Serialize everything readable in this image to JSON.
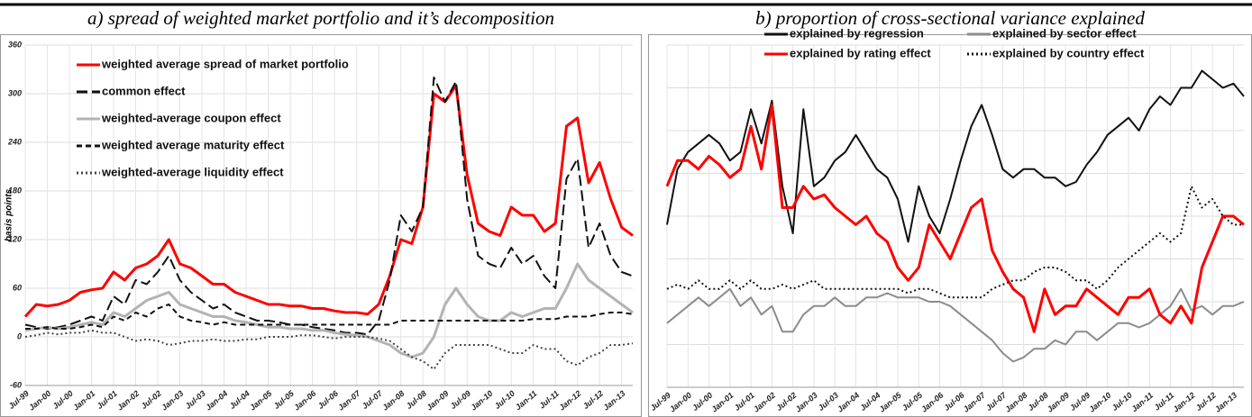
{
  "chart_data": [
    {
      "type": "line",
      "title": "a) spread of weighted market portfolio and it’s decomposition",
      "ylabel": "basis points",
      "x": [
        "Jul-99",
        null,
        "Jan-00",
        null,
        "Jul-00",
        null,
        "Jan-01",
        null,
        "Jul-01",
        null,
        "Jan-02",
        null,
        "Jul-02",
        null,
        "Jan-03",
        null,
        "Jul-03",
        null,
        "Jan-04",
        null,
        "Jul-04",
        null,
        "Jan-05",
        null,
        "Jul-05",
        null,
        "Jan-06",
        null,
        "Jul-06",
        null,
        "Jan-07",
        null,
        "Jul-07",
        null,
        "Jan-08",
        null,
        "Jul-08",
        null,
        "Jan-09",
        null,
        "Jul-09",
        null,
        "Jan-10",
        null,
        "Jul-10",
        null,
        "Jan-11",
        null,
        "Jul-11",
        null,
        "Jan-12",
        null,
        "Jul-12",
        null,
        "Jan-13",
        null
      ],
      "ylim": [
        -60,
        360
      ],
      "yticks": [
        -60,
        0,
        60,
        120,
        180,
        240,
        300,
        360
      ],
      "show_ytick_labels": true,
      "grid": true,
      "legend": "upper left",
      "series": [
        {
          "name": "weighted average spread of market portfolio",
          "color": "#ff0000",
          "linestyle": "solid",
          "values": [
            25,
            40,
            38,
            40,
            45,
            55,
            58,
            60,
            80,
            70,
            85,
            90,
            100,
            120,
            90,
            85,
            75,
            65,
            65,
            55,
            50,
            45,
            40,
            40,
            38,
            38,
            35,
            35,
            32,
            30,
            30,
            28,
            40,
            75,
            120,
            115,
            160,
            300,
            290,
            310,
            200,
            140,
            130,
            125,
            160,
            150,
            150,
            130,
            140,
            260,
            270,
            190,
            215,
            170,
            135,
            125
          ]
        },
        {
          "name": "common effect",
          "color": "#111111",
          "linestyle": "dashed",
          "values": [
            15,
            12,
            10,
            12,
            15,
            20,
            25,
            20,
            50,
            40,
            70,
            65,
            80,
            100,
            70,
            55,
            45,
            35,
            40,
            30,
            25,
            20,
            20,
            18,
            15,
            15,
            12,
            10,
            8,
            5,
            5,
            3,
            20,
            70,
            150,
            130,
            160,
            320,
            290,
            315,
            170,
            100,
            90,
            85,
            110,
            90,
            100,
            75,
            60,
            195,
            220,
            110,
            140,
            100,
            80,
            75
          ]
        },
        {
          "name": "weighted-average coupon effect",
          "color": "#b3b3b3",
          "linestyle": "solid",
          "values": [
            8,
            10,
            12,
            10,
            12,
            15,
            18,
            15,
            30,
            25,
            35,
            45,
            50,
            55,
            40,
            35,
            30,
            25,
            25,
            20,
            18,
            15,
            12,
            12,
            10,
            10,
            8,
            8,
            5,
            3,
            2,
            0,
            -5,
            -10,
            -20,
            -25,
            -20,
            0,
            40,
            60,
            40,
            25,
            20,
            20,
            30,
            25,
            30,
            35,
            35,
            60,
            90,
            70,
            60,
            50,
            40,
            30
          ]
        },
        {
          "name": "weighted average maturity effect",
          "color": "#111111",
          "linestyle": "short-dashed",
          "values": [
            10,
            10,
            12,
            10,
            10,
            12,
            15,
            12,
            25,
            20,
            30,
            25,
            35,
            40,
            25,
            20,
            18,
            15,
            18,
            15,
            15,
            15,
            15,
            15,
            15,
            15,
            15,
            15,
            15,
            15,
            15,
            15,
            15,
            15,
            20,
            20,
            20,
            20,
            20,
            20,
            20,
            20,
            20,
            20,
            20,
            20,
            22,
            22,
            22,
            25,
            25,
            25,
            28,
            30,
            30,
            28
          ]
        },
        {
          "name": "weighted-average liquidity effect",
          "color": "#444444",
          "linestyle": "dotted",
          "values": [
            0,
            2,
            5,
            3,
            5,
            5,
            8,
            5,
            5,
            0,
            -5,
            -3,
            -5,
            -10,
            -8,
            -5,
            -5,
            -3,
            -5,
            -5,
            -3,
            -3,
            0,
            0,
            0,
            2,
            2,
            0,
            -2,
            0,
            0,
            0,
            -2,
            -5,
            -15,
            -25,
            -30,
            -40,
            -20,
            -10,
            -10,
            -10,
            -10,
            -15,
            -20,
            -20,
            -10,
            -15,
            -15,
            -30,
            -35,
            -25,
            -20,
            -10,
            -10,
            -8
          ]
        }
      ]
    },
    {
      "type": "line",
      "title": "b) proportion of cross-sectional variance explained",
      "x": [
        "Jul-99",
        null,
        "Jan-00",
        null,
        "Jul-00",
        null,
        "Jan-01",
        null,
        "Jul-01",
        null,
        "Jan-02",
        null,
        "Jul-02",
        null,
        "Jan-03",
        null,
        "Jul-03",
        null,
        "Jan-04",
        null,
        "Jul-04",
        null,
        "Jan-05",
        null,
        "Jul-05",
        null,
        "Jan-06",
        null,
        "Jul-06",
        null,
        "Jan-07",
        null,
        "Jul-07",
        null,
        "Jan-08",
        null,
        "Jul-08",
        null,
        "Jan-09",
        null,
        "Jul-09",
        null,
        "Jan-10",
        null,
        "Jul-10",
        null,
        "Jan-11",
        null,
        "Jul-11",
        null,
        "Jan-12",
        null,
        "Jul-12",
        null,
        "Jan-13",
        null
      ],
      "ylim": [
        0,
        80
      ],
      "yticks": [
        0,
        10,
        20,
        30,
        40,
        50,
        60,
        70,
        80
      ],
      "show_ytick_labels": false,
      "grid": true,
      "legend": "upper center",
      "series": [
        {
          "name": "explained by regression",
          "color": "#111111",
          "linestyle": "solid",
          "values": [
            38,
            51,
            55,
            57,
            59,
            57,
            53,
            55,
            65,
            57,
            67,
            47,
            36,
            65,
            47,
            49,
            53,
            55,
            59,
            55,
            51,
            49,
            44,
            34,
            47,
            40,
            36,
            44,
            53,
            61,
            66,
            59,
            51,
            49,
            51,
            51,
            49,
            49,
            47,
            48,
            52,
            55,
            59,
            61,
            63,
            60,
            65,
            68,
            66,
            70,
            70,
            74,
            72,
            70,
            71,
            68
          ]
        },
        {
          "name": "explained by sector effect",
          "color": "#8c8c8c",
          "linestyle": "solid",
          "values": [
            15,
            17,
            19,
            21,
            19,
            21,
            23,
            19,
            21,
            17,
            19,
            13,
            13,
            17,
            19,
            19,
            21,
            19,
            19,
            21,
            21,
            22,
            21,
            21,
            21,
            20,
            20,
            19,
            17,
            15,
            13,
            11,
            8,
            6,
            7,
            9,
            9,
            11,
            10,
            13,
            13,
            11,
            13,
            15,
            15,
            14,
            15,
            17,
            19,
            23,
            18,
            19,
            17,
            19,
            19,
            20
          ]
        },
        {
          "name": "explained by rating effect",
          "color": "#ff0000",
          "linestyle": "solid",
          "values": [
            47,
            53,
            53,
            51,
            54,
            52,
            49,
            51,
            61,
            51,
            66,
            42,
            42,
            47,
            44,
            45,
            42,
            40,
            38,
            40,
            36,
            34,
            28,
            25,
            28,
            38,
            34,
            30,
            36,
            42,
            44,
            32,
            27,
            23,
            21,
            13,
            23,
            17,
            19,
            19,
            23,
            21,
            19,
            17,
            21,
            21,
            23,
            17,
            15,
            19,
            15,
            28,
            34,
            40,
            40,
            38
          ]
        },
        {
          "name": "explained by country effect",
          "color": "#111111",
          "linestyle": "dotted",
          "values": [
            23,
            24,
            23,
            25,
            23,
            23,
            25,
            23,
            25,
            23,
            23,
            24,
            23,
            24,
            25,
            23,
            23,
            23,
            23,
            23,
            23,
            23,
            23,
            22,
            23,
            23,
            22,
            21,
            21,
            21,
            21,
            23,
            24,
            25,
            25,
            27,
            28,
            28,
            27,
            25,
            25,
            23,
            25,
            28,
            30,
            32,
            34,
            36,
            34,
            36,
            47,
            42,
            44,
            40,
            38,
            38
          ]
        }
      ]
    }
  ]
}
